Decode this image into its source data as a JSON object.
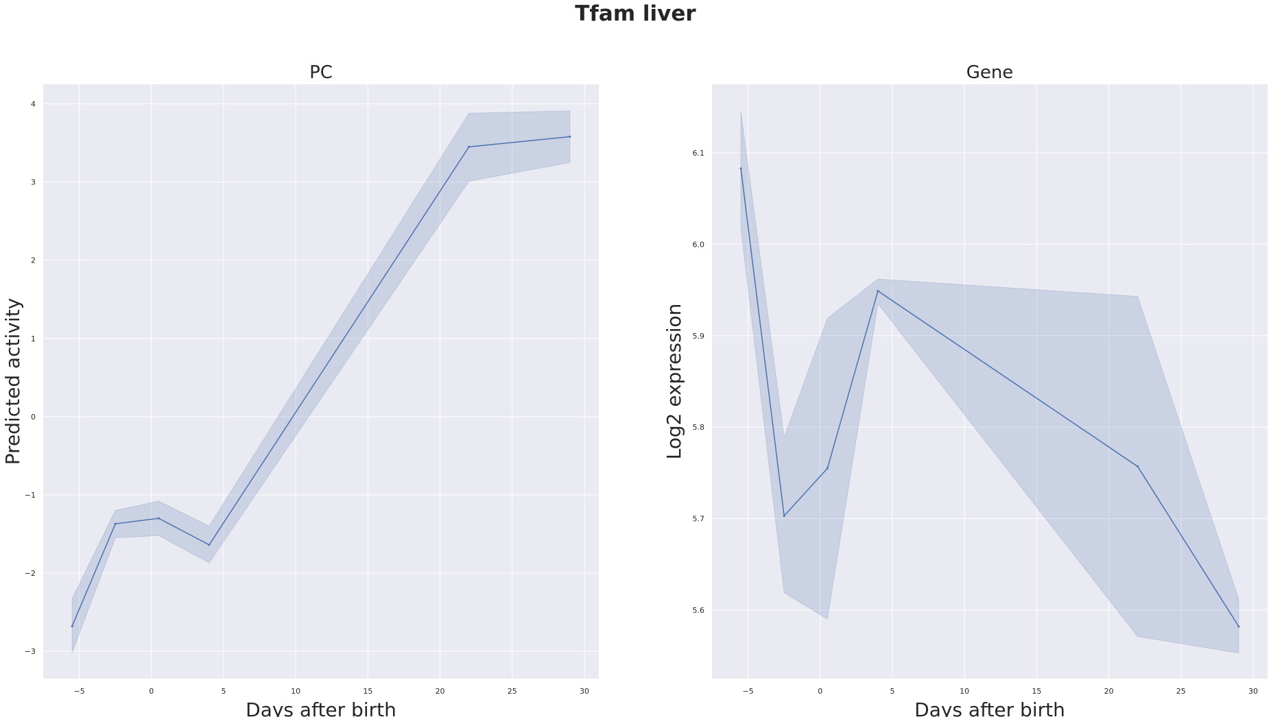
{
  "suptitle": "Tfam liver",
  "chart_data": [
    {
      "type": "line",
      "title": "PC",
      "xlabel": "Days after birth",
      "ylabel": "Predicted activity",
      "xlim": [
        -7.5,
        31
      ],
      "ylim": [
        -3.35,
        4.25
      ],
      "xticks": [
        -5,
        0,
        5,
        10,
        15,
        20,
        25,
        30
      ],
      "xtick_labels": [
        "−5",
        "0",
        "5",
        "10",
        "15",
        "20",
        "25",
        "30"
      ],
      "yticks": [
        -3,
        -2,
        -1,
        0,
        1,
        2,
        3,
        4
      ],
      "ytick_labels": [
        "−3",
        "−2",
        "−1",
        "0",
        "1",
        "2",
        "3",
        "4"
      ],
      "grid": true,
      "color": "#4c72b0",
      "x": [
        -5.5,
        -2.5,
        0.5,
        4,
        22,
        29
      ],
      "y": [
        -2.68,
        -1.37,
        -1.3,
        -1.64,
        3.45,
        3.58
      ],
      "ci_low": [
        -3.02,
        -1.55,
        -1.52,
        -1.87,
        3.01,
        3.25
      ],
      "ci_high": [
        -2.33,
        -1.2,
        -1.08,
        -1.4,
        3.88,
        3.91
      ]
    },
    {
      "type": "line",
      "title": "Gene",
      "xlabel": "Days after birth",
      "ylabel": "Log2 expression",
      "xlim": [
        -7.5,
        31
      ],
      "ylim": [
        5.525,
        6.175
      ],
      "xticks": [
        -5,
        0,
        5,
        10,
        15,
        20,
        25,
        30
      ],
      "xtick_labels": [
        "−5",
        "0",
        "5",
        "10",
        "15",
        "20",
        "25",
        "30"
      ],
      "yticks": [
        5.6,
        5.7,
        5.8,
        5.9,
        6.0,
        6.1
      ],
      "ytick_labels": [
        "5.6",
        "5.7",
        "5.8",
        "5.9",
        "6.0",
        "6.1"
      ],
      "grid": true,
      "color": "#4c72b0",
      "x": [
        -5.5,
        -2.5,
        0.5,
        4,
        22,
        29
      ],
      "y": [
        6.083,
        5.703,
        5.755,
        5.949,
        5.757,
        5.582
      ],
      "ci_low": [
        6.018,
        5.619,
        5.59,
        5.935,
        5.571,
        5.553
      ],
      "ci_high": [
        6.145,
        5.789,
        5.919,
        5.962,
        5.943,
        5.612
      ]
    }
  ]
}
